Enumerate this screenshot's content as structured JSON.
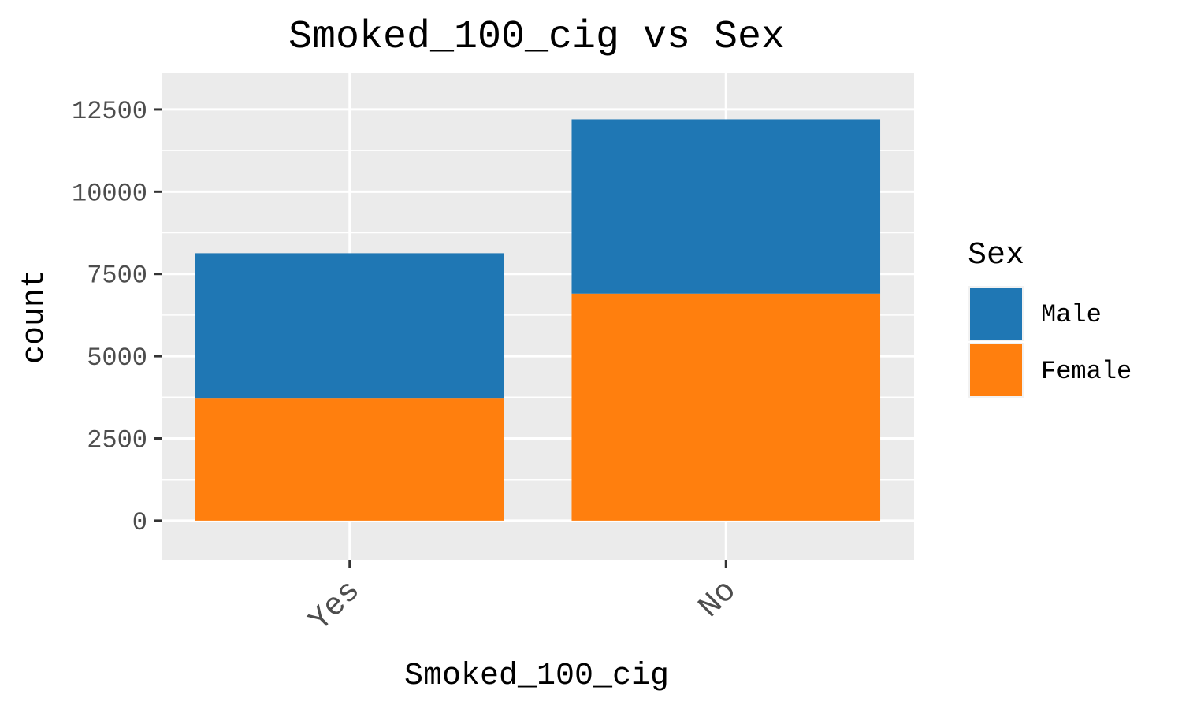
{
  "chart_data": {
    "type": "bar",
    "stacked": true,
    "title": "Smoked_100_cig vs Sex",
    "xlabel": "Smoked_100_cig",
    "ylabel": "count",
    "categories": [
      "Yes",
      "No"
    ],
    "series": [
      {
        "name": "Male",
        "values": [
          4400,
          5300
        ],
        "color": "#1f77b4"
      },
      {
        "name": "Female",
        "values": [
          3730,
          6900
        ],
        "color": "#ff7f0e"
      }
    ],
    "yticks": [
      0,
      2500,
      5000,
      7500,
      10000,
      12500
    ],
    "ytick_labels": [
      "0",
      "2500",
      "5000",
      "7500",
      "10000",
      "12500"
    ],
    "ylim": [
      -1200,
      13600
    ],
    "grid": true,
    "panel_background": "#ebebeb",
    "legend": {
      "title": "Sex",
      "placement": "right",
      "entries": [
        "Male",
        "Female"
      ]
    }
  }
}
